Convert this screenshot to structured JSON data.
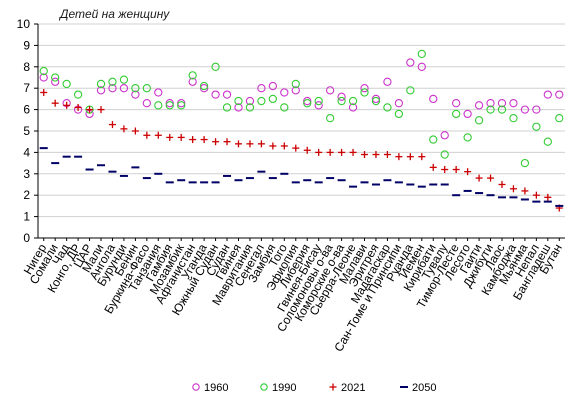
{
  "chart_data": {
    "type": "scatter",
    "ylabel": "Детей на женщину",
    "ylim": [
      0,
      10
    ],
    "yticks": [
      0,
      1,
      2,
      3,
      4,
      5,
      6,
      7,
      8,
      9,
      10
    ],
    "grid": "horizontal",
    "legend_position": "bottom",
    "categories": [
      "Нигер",
      "Сомали",
      "Чад",
      "Конго, ДР",
      "ЦАР",
      "Мали",
      "Ангола",
      "Бурунди",
      "Бенин",
      "Буркина-Фасо",
      "Танзания",
      "Гамбия",
      "Мозамбик",
      "Афганистан",
      "Уганда",
      "Южный Судан",
      "Судан",
      "Гвинея",
      "Мавритания",
      "Сенегал",
      "Замбия",
      "Того",
      "Эфиопия",
      "Либерия",
      "Гвинея-Бисау",
      "Соломоновы о-ва",
      "Коморские о-ва",
      "Сьерра-Леоне",
      "Малави",
      "Эритрея",
      "Мадагаскар",
      "Сан-Томе и Принсипи",
      "Руанда",
      "Йемен",
      "Кирибати",
      "Тувалу",
      "Тимор-Лесте",
      "Лесото",
      "Гаити",
      "Джибути",
      "Лаос",
      "Камбоджа",
      "Мьянма",
      "Непал",
      "Бангладеш",
      "Бутан"
    ],
    "series": [
      {
        "name": "1960",
        "color": "#cc33cc",
        "marker": "circle",
        "values": [
          7.5,
          7.3,
          6.3,
          6.0,
          5.8,
          6.9,
          7.0,
          7.0,
          6.7,
          6.3,
          6.8,
          6.3,
          6.3,
          7.3,
          7.0,
          6.7,
          6.7,
          6.1,
          6.4,
          7.0,
          7.1,
          6.8,
          6.9,
          6.4,
          6.2,
          6.9,
          6.6,
          6.1,
          7.0,
          6.5,
          7.3,
          6.3,
          8.2,
          8.0,
          6.5,
          4.8,
          6.3,
          5.8,
          6.2,
          6.3,
          6.3,
          6.3,
          6.0,
          6.0,
          6.7,
          6.7
        ]
      },
      {
        "name": "1990",
        "color": "#33cc33",
        "marker": "circle",
        "values": [
          7.8,
          7.5,
          7.2,
          6.7,
          6.0,
          7.2,
          7.3,
          7.4,
          7.0,
          7.0,
          6.2,
          6.2,
          6.2,
          7.6,
          7.1,
          8.0,
          6.1,
          6.4,
          6.1,
          6.4,
          6.5,
          6.1,
          7.2,
          6.3,
          6.4,
          5.6,
          6.4,
          6.4,
          6.8,
          6.4,
          6.1,
          5.8,
          6.9,
          8.6,
          4.6,
          3.9,
          5.8,
          4.7,
          5.5,
          6.0,
          6.0,
          5.6,
          3.5,
          5.2,
          4.5,
          5.6
        ]
      },
      {
        "name": "2021",
        "color": "#cc0000",
        "marker": "plus",
        "values": [
          6.8,
          6.3,
          6.2,
          6.1,
          6.0,
          6.0,
          5.3,
          5.1,
          5.0,
          4.8,
          4.8,
          4.7,
          4.7,
          4.6,
          4.6,
          4.5,
          4.5,
          4.4,
          4.4,
          4.4,
          4.3,
          4.3,
          4.2,
          4.1,
          4.0,
          4.0,
          4.0,
          4.0,
          3.9,
          3.9,
          3.9,
          3.8,
          3.8,
          3.8,
          3.3,
          3.2,
          3.2,
          3.1,
          2.8,
          2.8,
          2.5,
          2.3,
          2.2,
          2.0,
          1.9,
          1.4
        ]
      },
      {
        "name": "2050",
        "color": "#000066",
        "marker": "dash",
        "values": [
          4.2,
          3.5,
          3.8,
          3.8,
          3.2,
          3.4,
          3.1,
          2.9,
          3.3,
          2.8,
          3.0,
          2.6,
          2.7,
          2.6,
          2.6,
          2.6,
          2.9,
          2.7,
          2.8,
          3.1,
          2.8,
          3.0,
          2.6,
          2.7,
          2.6,
          2.8,
          2.7,
          2.4,
          2.6,
          2.5,
          2.7,
          2.6,
          2.5,
          2.4,
          2.5,
          2.5,
          2.0,
          2.2,
          2.1,
          2.0,
          1.9,
          1.9,
          1.8,
          1.7,
          1.7,
          1.5
        ]
      }
    ]
  }
}
